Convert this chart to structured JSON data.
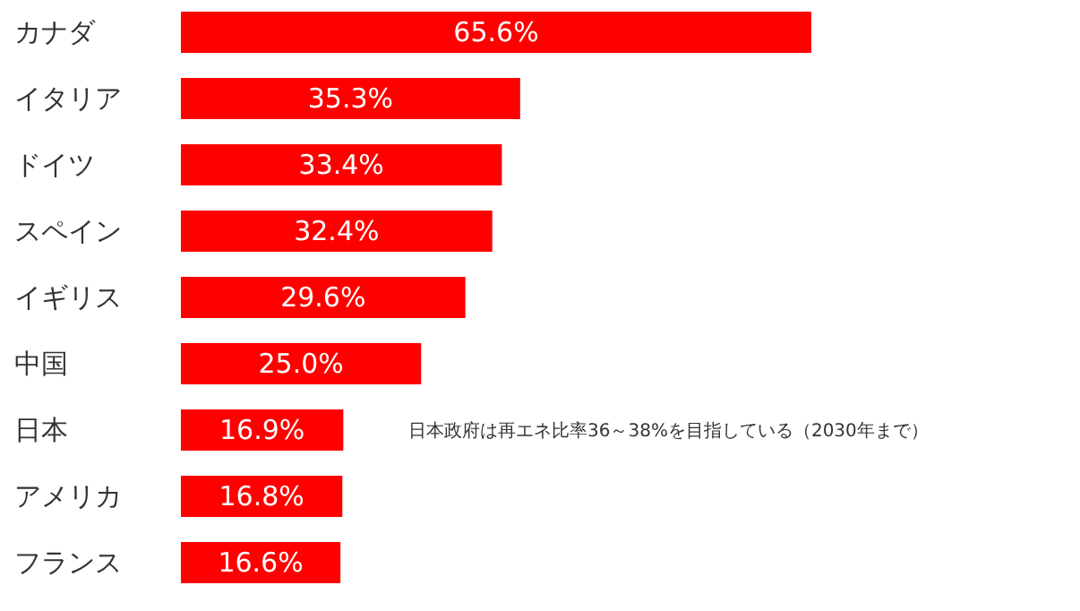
{
  "chart_data": {
    "type": "bar",
    "orientation": "horizontal",
    "categories": [
      "カナダ",
      "イタリア",
      "ドイツ",
      "スペイン",
      "イギリス",
      "中国",
      "日本",
      "アメリカ",
      "フランス"
    ],
    "values": [
      65.6,
      35.3,
      33.4,
      32.4,
      29.6,
      25.0,
      16.9,
      16.8,
      16.6
    ],
    "value_labels": [
      "65.6%",
      "35.3%",
      "33.4%",
      "32.4%",
      "29.6%",
      "25.0%",
      "16.9%",
      "16.8%",
      "16.6%"
    ],
    "color": "#ff0000",
    "annotations": [
      "日本政府は再エネ比率36～38%を目指している（2030年まで）"
    ]
  }
}
